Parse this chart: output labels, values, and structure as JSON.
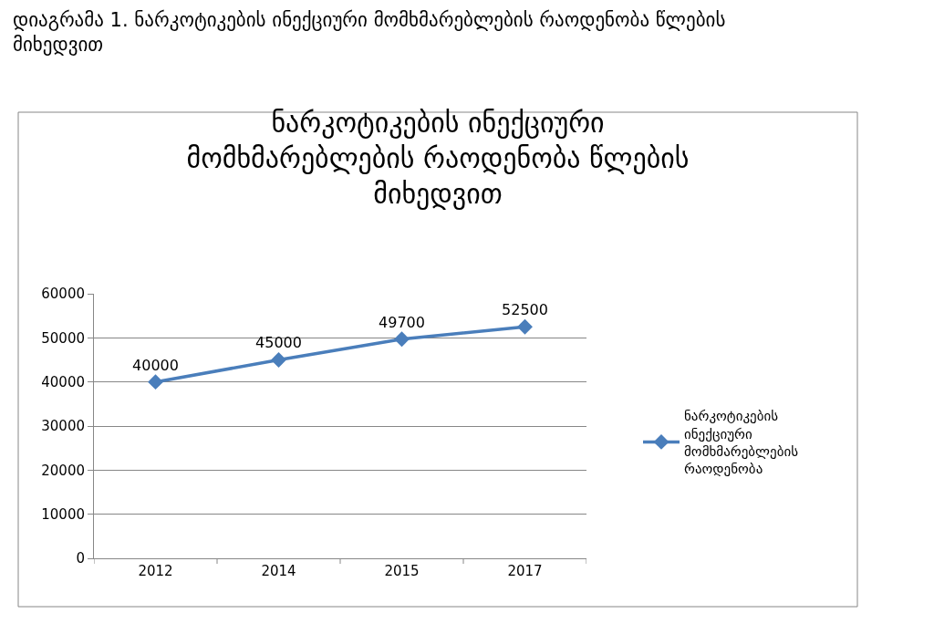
{
  "chart_data": {
    "type": "line",
    "title": "ნარკოტიკების ინექციური მომხმარებლების რაოდენობა წლების მიხედვით",
    "annotations": [
      "დიაგრამა 1. ნარკოტიკების ინექციური მომხმარებლების რაოდენობა წლების მიხედვით"
    ],
    "categories": [
      "2012",
      "2014",
      "2015",
      "2017"
    ],
    "series": [
      {
        "name": "ნარკოტიკების ინექციური მომხმარებლების რაოდენობა",
        "color": "#4a7ebb",
        "values": [
          40000,
          45000,
          49700,
          52500
        ]
      }
    ],
    "ylim": [
      0,
      60000
    ],
    "yticks": [
      0,
      10000,
      20000,
      30000,
      40000,
      50000,
      60000
    ],
    "grid": "y",
    "legend": "right",
    "marker": "diamond",
    "line_style": "solid",
    "data_labels": true
  }
}
